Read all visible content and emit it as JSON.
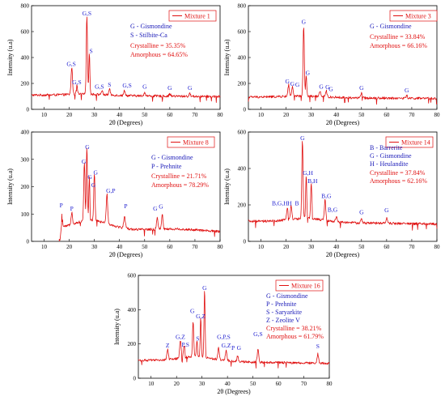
{
  "chart_data": [
    {
      "type": "line",
      "legend": "Mixture 1",
      "xlabel": "2θ (Degrees)",
      "ylabel": "Intensity (u.a)",
      "xlim": [
        5,
        80
      ],
      "ylim": [
        0,
        800
      ],
      "xticks": [
        10,
        20,
        30,
        40,
        50,
        60,
        70,
        80
      ],
      "yticks": [
        0,
        200,
        400,
        600,
        800
      ],
      "notes_blue": [
        "G - Gismondine",
        "S - Stilbite-Ca"
      ],
      "notes_red": [
        "Crystalline = 35.35%",
        "Amorphous = 64.65%"
      ],
      "baseline": 110,
      "peaks": [
        {
          "x": 21,
          "y": 320,
          "w": 0.4
        },
        {
          "x": 23,
          "y": 175,
          "w": 0.4
        },
        {
          "x": 27,
          "y": 710,
          "w": 0.35
        },
        {
          "x": 28,
          "y": 420,
          "w": 0.3
        },
        {
          "x": 33,
          "y": 140,
          "w": 0.4
        },
        {
          "x": 36,
          "y": 155,
          "w": 0.4
        },
        {
          "x": 42,
          "y": 150,
          "w": 0.4
        },
        {
          "x": 50,
          "y": 140,
          "w": 0.4
        },
        {
          "x": 60,
          "y": 130,
          "w": 0.4
        },
        {
          "x": 68,
          "y": 130,
          "w": 0.4
        }
      ],
      "labels": [
        {
          "text": "G,S",
          "x": 27,
          "y": 725
        },
        {
          "text": "G,S",
          "x": 20.8,
          "y": 335
        },
        {
          "text": "S",
          "x": 28.7,
          "y": 435
        },
        {
          "text": "G,S",
          "x": 23,
          "y": 195
        },
        {
          "text": "G,S",
          "x": 32,
          "y": 160
        },
        {
          "text": "S",
          "x": 36,
          "y": 175
        },
        {
          "text": "G,S",
          "x": 43,
          "y": 170
        },
        {
          "text": "G",
          "x": 50,
          "y": 160
        },
        {
          "text": "G",
          "x": 60,
          "y": 150
        },
        {
          "text": "G",
          "x": 68,
          "y": 150
        }
      ]
    },
    {
      "type": "line",
      "legend": "Mixture 3",
      "xlabel": "2θ (Degrees)",
      "ylabel": "Intensity (u.a)",
      "xlim": [
        5,
        80
      ],
      "ylim": [
        0,
        800
      ],
      "xticks": [
        10,
        20,
        30,
        40,
        50,
        60,
        70,
        80
      ],
      "yticks": [
        0,
        200,
        400,
        600,
        800
      ],
      "notes_blue": [
        "G - Gismondine"
      ],
      "notes_red": [
        "Crystalline = 33.84%",
        "Amorphous = 66.16%"
      ],
      "baseline": 95,
      "peaks": [
        {
          "x": 21,
          "y": 185,
          "w": 0.4
        },
        {
          "x": 22.5,
          "y": 165,
          "w": 0.4
        },
        {
          "x": 27,
          "y": 640,
          "w": 0.35
        },
        {
          "x": 28,
          "y": 250,
          "w": 0.3
        },
        {
          "x": 33.5,
          "y": 140,
          "w": 0.4
        },
        {
          "x": 36,
          "y": 140,
          "w": 0.4
        },
        {
          "x": 50,
          "y": 130,
          "w": 0.4
        },
        {
          "x": 68,
          "y": 115,
          "w": 0.4
        }
      ],
      "labels": [
        {
          "text": "G",
          "x": 27,
          "y": 660
        },
        {
          "text": "G",
          "x": 28.6,
          "y": 265
        },
        {
          "text": "G",
          "x": 20.5,
          "y": 200
        },
        {
          "text": "G",
          "x": 22.5,
          "y": 180
        },
        {
          "text": "G",
          "x": 24.5,
          "y": 175
        },
        {
          "text": "G",
          "x": 34,
          "y": 160
        },
        {
          "text": "G",
          "x": 36.5,
          "y": 155
        },
        {
          "text": "G",
          "x": 37.8,
          "y": 142
        },
        {
          "text": "G",
          "x": 50,
          "y": 150
        },
        {
          "text": "G",
          "x": 68,
          "y": 130
        }
      ]
    },
    {
      "type": "line",
      "legend": "Mixture 8",
      "xlabel": "2θ (Degrees)",
      "ylabel": "Intensity (u.a)",
      "xlim": [
        5,
        80
      ],
      "ylim": [
        0,
        400
      ],
      "xticks": [
        10,
        20,
        30,
        40,
        50,
        60,
        70,
        80
      ],
      "yticks": [
        0,
        100,
        200,
        300,
        400
      ],
      "notes_blue": [
        "G - Gismondine",
        "P - Prehnite"
      ],
      "notes_red": [
        "Crystalline = 21.71%",
        "Amorphous = 78.29%"
      ],
      "baseline": 55,
      "peaks": [
        {
          "x": 17,
          "y": 110,
          "w": 0.4
        },
        {
          "x": 21,
          "y": 100,
          "w": 0.4
        },
        {
          "x": 26,
          "y": 270,
          "w": 0.35
        },
        {
          "x": 27,
          "y": 325,
          "w": 0.3
        },
        {
          "x": 28,
          "y": 215,
          "w": 0.3
        },
        {
          "x": 30,
          "y": 230,
          "w": 0.35
        },
        {
          "x": 35,
          "y": 165,
          "w": 0.4
        },
        {
          "x": 42,
          "y": 95,
          "w": 0.5
        },
        {
          "x": 55,
          "y": 100,
          "w": 0.4
        },
        {
          "x": 57,
          "y": 110,
          "w": 0.4
        }
      ],
      "labels": [
        {
          "text": "G",
          "x": 27.2,
          "y": 338
        },
        {
          "text": "G",
          "x": 25.8,
          "y": 285
        },
        {
          "text": "G",
          "x": 30.5,
          "y": 245
        },
        {
          "text": "G",
          "x": 28.2,
          "y": 228
        },
        {
          "text": "G",
          "x": 29.6,
          "y": 198
        },
        {
          "text": "G,P",
          "x": 36.5,
          "y": 178
        },
        {
          "text": "P",
          "x": 16.8,
          "y": 125
        },
        {
          "text": "P",
          "x": 21,
          "y": 112
        },
        {
          "text": "P",
          "x": 42.5,
          "y": 122
        },
        {
          "text": "G",
          "x": 54.2,
          "y": 112
        },
        {
          "text": "G",
          "x": 56.5,
          "y": 120
        }
      ]
    },
    {
      "type": "line",
      "legend": "Mixture 14",
      "xlabel": "2θ (Degrees)",
      "ylabel": "Intensity (u.a)",
      "xlim": [
        5,
        80
      ],
      "ylim": [
        0,
        600
      ],
      "xticks": [
        10,
        20,
        30,
        40,
        50,
        60,
        70,
        80
      ],
      "yticks": [
        0,
        200,
        400,
        600
      ],
      "notes_blue": [
        "B - Barrerite",
        "G - Gismondine",
        "H - Heulandite"
      ],
      "notes_red": [
        "Crystalline = 37.84%",
        "Amorphous = 62.16%"
      ],
      "baseline": 110,
      "peaks": [
        {
          "x": 20.5,
          "y": 180,
          "w": 0.4
        },
        {
          "x": 22,
          "y": 185,
          "w": 0.4
        },
        {
          "x": 26.5,
          "y": 540,
          "w": 0.35
        },
        {
          "x": 28,
          "y": 345,
          "w": 0.3
        },
        {
          "x": 30,
          "y": 300,
          "w": 0.35
        },
        {
          "x": 35.5,
          "y": 220,
          "w": 0.4
        },
        {
          "x": 40,
          "y": 140,
          "w": 0.4
        },
        {
          "x": 50,
          "y": 130,
          "w": 0.4
        },
        {
          "x": 60,
          "y": 140,
          "w": 0.4
        }
      ],
      "labels": [
        {
          "text": "G",
          "x": 26.5,
          "y": 555
        },
        {
          "text": "G,H",
          "x": 28.7,
          "y": 365
        },
        {
          "text": "B,H",
          "x": 30.5,
          "y": 320
        },
        {
          "text": "B,G,H",
          "x": 17.5,
          "y": 198
        },
        {
          "text": "H",
          "x": 21.4,
          "y": 198
        },
        {
          "text": "B",
          "x": 24.3,
          "y": 198
        },
        {
          "text": "B,G",
          "x": 36,
          "y": 238
        },
        {
          "text": "B,G",
          "x": 38.5,
          "y": 162
        },
        {
          "text": "G",
          "x": 50,
          "y": 150
        },
        {
          "text": "G",
          "x": 60,
          "y": 160
        }
      ]
    },
    {
      "type": "line",
      "legend": "Mixture 16",
      "xlabel": "2θ (Degrees)",
      "ylabel": "Intensity (u.a)",
      "xlim": [
        5,
        80
      ],
      "ylim": [
        0,
        600
      ],
      "xticks": [
        10,
        20,
        30,
        40,
        50,
        60,
        70,
        80
      ],
      "yticks": [
        0,
        200,
        400,
        600
      ],
      "notes_blue": [
        "G - Gismondine",
        "P - Prehnite",
        "S - Saryarkite",
        "Z - Zeolite V"
      ],
      "notes_red": [
        "Crystalline = 38.21%",
        "Amorphous = 61.79%"
      ],
      "baseline": 105,
      "peaks": [
        {
          "x": 16.5,
          "y": 165,
          "w": 0.4
        },
        {
          "x": 21.5,
          "y": 210,
          "w": 0.4
        },
        {
          "x": 23,
          "y": 175,
          "w": 0.4
        },
        {
          "x": 26.5,
          "y": 310,
          "w": 0.35
        },
        {
          "x": 28,
          "y": 200,
          "w": 0.3
        },
        {
          "x": 29.5,
          "y": 330,
          "w": 0.3
        },
        {
          "x": 31,
          "y": 500,
          "w": 0.3
        },
        {
          "x": 36.5,
          "y": 175,
          "w": 0.4
        },
        {
          "x": 39.5,
          "y": 170,
          "w": 0.4
        },
        {
          "x": 44,
          "y": 140,
          "w": 0.4
        },
        {
          "x": 52,
          "y": 185,
          "w": 0.4
        },
        {
          "x": 75.5,
          "y": 160,
          "w": 0.4
        }
      ],
      "labels": [
        {
          "text": "G",
          "x": 31,
          "y": 515
        },
        {
          "text": "G,Z",
          "x": 29.5,
          "y": 350
        },
        {
          "text": "G",
          "x": 26.2,
          "y": 380
        },
        {
          "text": "S",
          "x": 28.3,
          "y": 220
        },
        {
          "text": "G,Z",
          "x": 21.5,
          "y": 230
        },
        {
          "text": "P,S",
          "x": 23.5,
          "y": 185
        },
        {
          "text": "Z",
          "x": 16.5,
          "y": 180
        },
        {
          "text": "G,P,S",
          "x": 38.5,
          "y": 230
        },
        {
          "text": "G,Z",
          "x": 39.5,
          "y": 180
        },
        {
          "text": "P",
          "x": 42.2,
          "y": 165
        },
        {
          "text": "G",
          "x": 44.5,
          "y": 165
        },
        {
          "text": "G,S",
          "x": 52,
          "y": 245
        },
        {
          "text": "S",
          "x": 75.5,
          "y": 175
        }
      ]
    }
  ]
}
